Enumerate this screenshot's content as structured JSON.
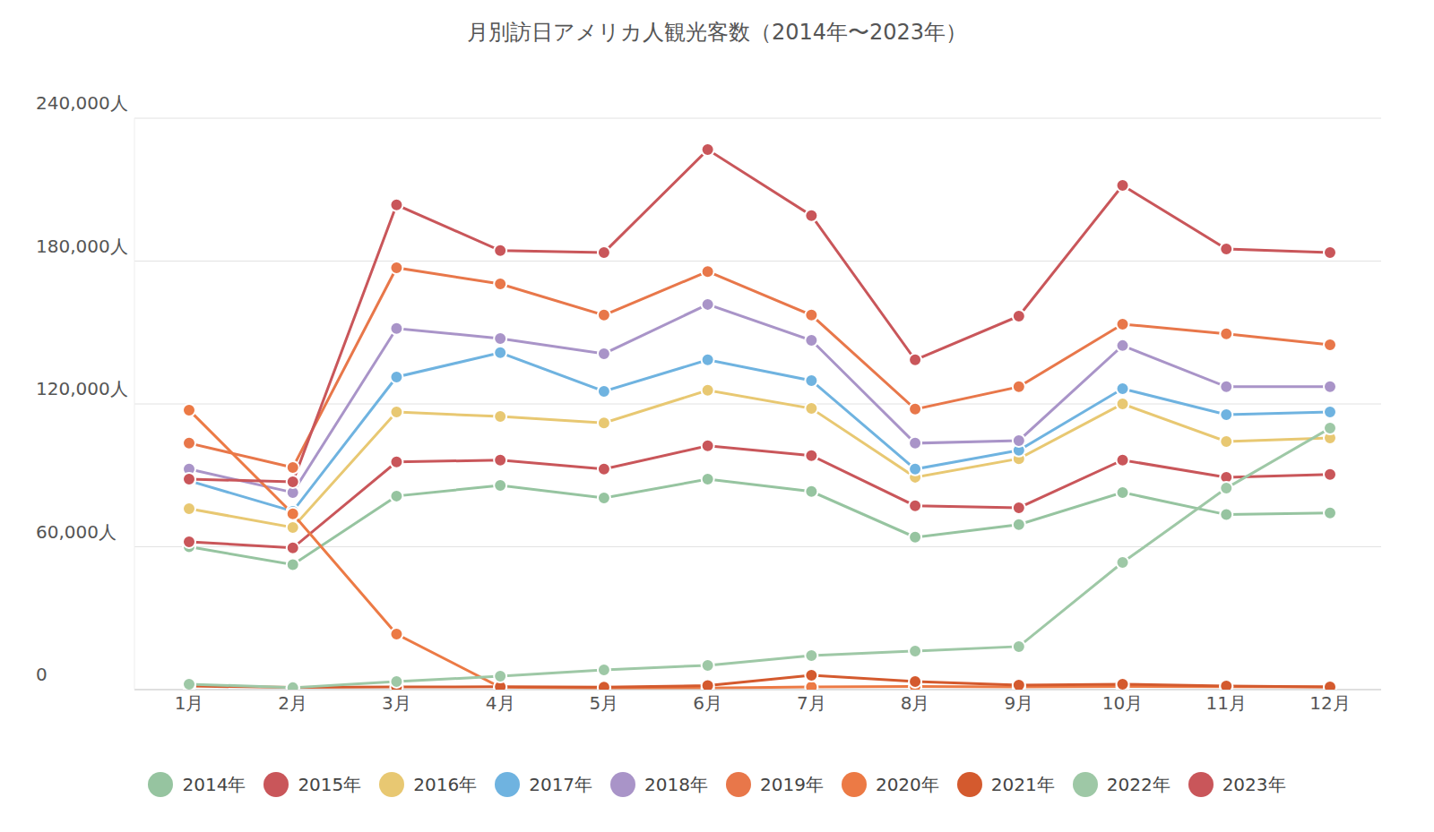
{
  "chart_data": {
    "type": "line",
    "title": "月別訪日アメリカ人観光客数（2014年〜2023年）",
    "categories": [
      "1月",
      "2月",
      "3月",
      "4月",
      "5月",
      "6月",
      "7月",
      "8月",
      "9月",
      "10月",
      "11月",
      "12月"
    ],
    "ylim": [
      0,
      240000
    ],
    "yticks": [
      0,
      {
        "value": 60000,
        "label": "60,000人"
      },
      {
        "value": 120000,
        "label": "120,000人"
      },
      {
        "value": 180000,
        "label": "180,000人"
      },
      {
        "value": 240000,
        "label": "240,000人"
      }
    ],
    "grid": true,
    "legend": "bottom",
    "marker": "circle",
    "series": [
      {
        "name": "2014年",
        "color": "#96c4a0",
        "values": [
          60000,
          52500,
          81300,
          85800,
          80500,
          88400,
          83200,
          64000,
          69300,
          82800,
          73500,
          74200
        ]
      },
      {
        "name": "2015年",
        "color": "#c9565a",
        "values": [
          62100,
          59500,
          95600,
          96400,
          92600,
          102400,
          98300,
          77200,
          76400,
          96400,
          89200,
          90400
        ]
      },
      {
        "name": "2016年",
        "color": "#e8c872",
        "values": [
          76000,
          68100,
          116600,
          114700,
          112000,
          125700,
          118100,
          89200,
          97000,
          120000,
          104200,
          105700
        ]
      },
      {
        "name": "2017年",
        "color": "#6fb3e0",
        "values": [
          87700,
          74900,
          131300,
          141500,
          125300,
          138500,
          129800,
          92600,
          100500,
          126400,
          115500,
          116600
        ]
      },
      {
        "name": "2018年",
        "color": "#a994c8",
        "values": [
          92600,
          82800,
          151700,
          147500,
          141100,
          161800,
          146700,
          103500,
          104600,
          144500,
          127200,
          127200
        ]
      },
      {
        "name": "2019年",
        "color": "#e8774a",
        "values": [
          103500,
          93300,
          177200,
          170400,
          157300,
          175600,
          157300,
          117800,
          127200,
          153500,
          149400,
          144800
        ]
      },
      {
        "name": "2020年",
        "color": "#ec7a45",
        "values": [
          117400,
          73800,
          23300,
          1000,
          600,
          700,
          1100,
          1300,
          1100,
          1300,
          1200,
          1100
        ]
      },
      {
        "name": "2021年",
        "color": "#d45a2e",
        "values": [
          1500,
          900,
          1100,
          1200,
          1000,
          1700,
          6000,
          3400,
          1900,
          2300,
          1500,
          1100
        ]
      },
      {
        "name": "2022年",
        "color": "#9ec8a6",
        "values": [
          2300,
          800,
          3400,
          5600,
          8300,
          10200,
          14300,
          16200,
          18100,
          53400,
          84600,
          109800
        ]
      },
      {
        "name": "2023年",
        "color": "#c9565a",
        "values": [
          88400,
          87300,
          203600,
          184400,
          183600,
          226800,
          199100,
          138500,
          156900,
          211800,
          185100,
          183600
        ]
      }
    ]
  }
}
